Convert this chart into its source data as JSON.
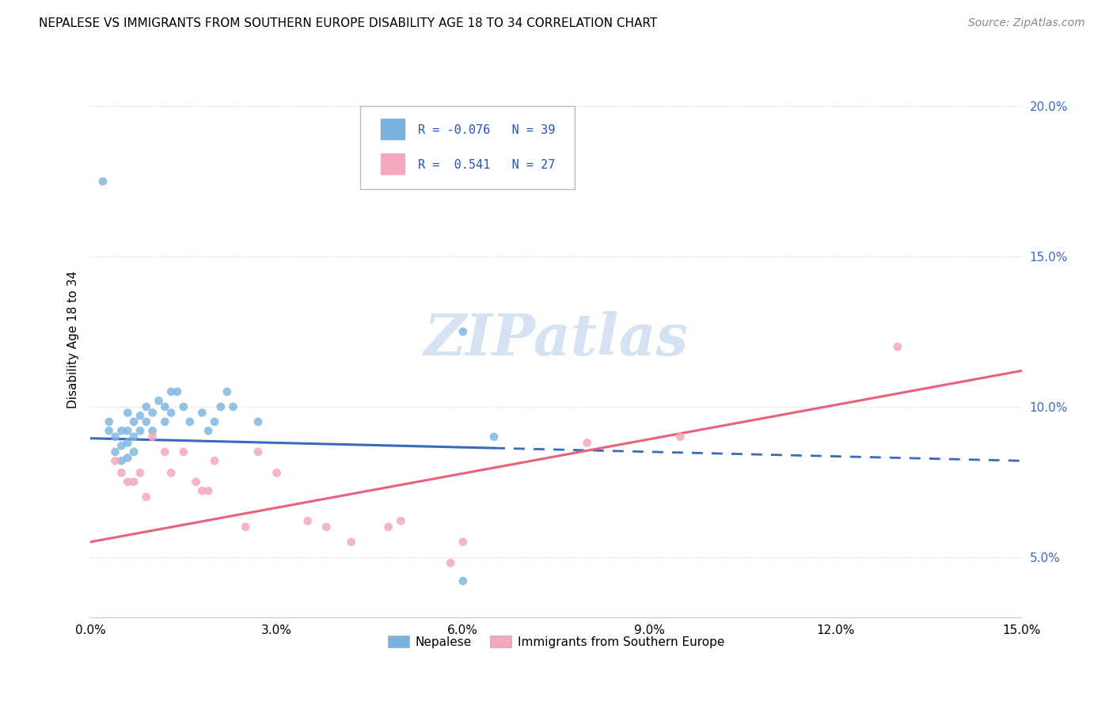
{
  "title": "NEPALESE VS IMMIGRANTS FROM SOUTHERN EUROPE DISABILITY AGE 18 TO 34 CORRELATION CHART",
  "source": "Source: ZipAtlas.com",
  "ylabel": "Disability Age 18 to 34",
  "xlim": [
    0.0,
    0.15
  ],
  "ylim": [
    0.03,
    0.215
  ],
  "yticks": [
    0.05,
    0.1,
    0.15,
    0.2
  ],
  "ytick_labels": [
    "5.0%",
    "10.0%",
    "15.0%",
    "20.0%"
  ],
  "xticks": [
    0.0,
    0.03,
    0.06,
    0.09,
    0.12,
    0.15
  ],
  "color_nepalese": "#7ab3df",
  "color_southern": "#f4a8bb",
  "color_trendline_nepalese": "#3a6abf",
  "color_trendline_southern": "#e8607a",
  "watermark_text": "ZIPatlas",
  "nepalese_x": [
    0.002,
    0.003,
    0.003,
    0.004,
    0.004,
    0.005,
    0.005,
    0.005,
    0.006,
    0.006,
    0.006,
    0.006,
    0.007,
    0.007,
    0.007,
    0.008,
    0.008,
    0.009,
    0.009,
    0.01,
    0.01,
    0.011,
    0.012,
    0.012,
    0.013,
    0.013,
    0.014,
    0.015,
    0.016,
    0.018,
    0.019,
    0.02,
    0.021,
    0.022,
    0.023,
    0.027,
    0.06,
    0.06,
    0.065
  ],
  "nepalese_y": [
    0.175,
    0.095,
    0.092,
    0.09,
    0.085,
    0.092,
    0.087,
    0.082,
    0.098,
    0.092,
    0.088,
    0.083,
    0.095,
    0.09,
    0.085,
    0.097,
    0.092,
    0.1,
    0.095,
    0.098,
    0.092,
    0.102,
    0.1,
    0.095,
    0.105,
    0.098,
    0.105,
    0.1,
    0.095,
    0.098,
    0.092,
    0.095,
    0.1,
    0.105,
    0.1,
    0.095,
    0.042,
    0.125,
    0.09
  ],
  "southern_x": [
    0.004,
    0.005,
    0.006,
    0.007,
    0.008,
    0.009,
    0.01,
    0.012,
    0.013,
    0.015,
    0.017,
    0.018,
    0.019,
    0.02,
    0.025,
    0.027,
    0.03,
    0.035,
    0.038,
    0.042,
    0.048,
    0.05,
    0.058,
    0.06,
    0.08,
    0.095,
    0.13
  ],
  "southern_y": [
    0.082,
    0.078,
    0.075,
    0.075,
    0.078,
    0.07,
    0.09,
    0.085,
    0.078,
    0.085,
    0.075,
    0.072,
    0.072,
    0.082,
    0.06,
    0.085,
    0.078,
    0.062,
    0.06,
    0.055,
    0.06,
    0.062,
    0.048,
    0.055,
    0.088,
    0.09,
    0.12
  ],
  "trendline_solid_end": 0.065,
  "trendline_dashed_start": 0.065
}
